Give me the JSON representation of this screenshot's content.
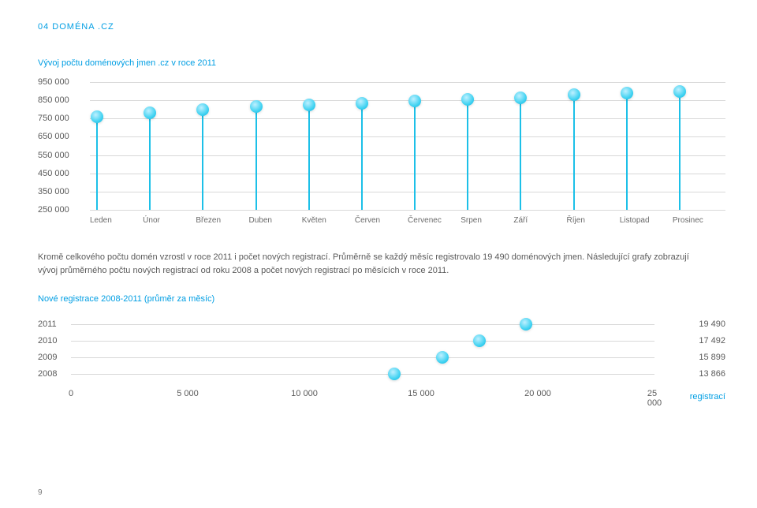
{
  "section_header": "04 DOMÉNA .CZ",
  "chart1": {
    "title": "Vývoj počtu doménových jmen .cz v roce 2011",
    "type": "lollipop",
    "ylim": [
      250000,
      950000
    ],
    "ytick_labels": [
      "950 000",
      "850 000",
      "750 000",
      "650 000",
      "550 000",
      "450 000",
      "350 000",
      "250 000"
    ],
    "ytick_values": [
      950000,
      850000,
      750000,
      650000,
      550000,
      450000,
      350000,
      250000
    ],
    "x_labels": [
      "Leden",
      "Únor",
      "Březen",
      "Duben",
      "Květen",
      "Červen",
      "Červenec",
      "Srpen",
      "Září",
      "Říjen",
      "Listopad",
      "Prosinec"
    ],
    "values": [
      760000,
      780000,
      800000,
      815000,
      825000,
      835000,
      845000,
      855000,
      865000,
      880000,
      890000,
      900000
    ],
    "stem_color": "#1cc0e8",
    "gridline_color": "#d8d8d8",
    "dot_colors": [
      "#42d3f2",
      "#11b2da"
    ]
  },
  "body_paragraph_1": "Kromě celkového počtu domén vzrostl v roce 2011 i počet nových registrací. Průměrně se každý měsíc registrovalo 19 490 doménových jmen. Následující grafy zobrazují vývoj průměrného počtu nových registrací od roku 2008 a počet nových registrací po měsících v roce 2011.",
  "chart2": {
    "title": "Nové registrace 2008-2011 (průměr za měsíc)",
    "type": "horizontal_lollipop",
    "rows": [
      {
        "label": "2011",
        "value": 19490,
        "display": "19 490"
      },
      {
        "label": "2010",
        "value": 17492,
        "display": "17 492"
      },
      {
        "label": "2009",
        "value": 15899,
        "display": "15 899"
      },
      {
        "label": "2008",
        "value": 13866,
        "display": "13 866"
      }
    ],
    "xlim": [
      0,
      25000
    ],
    "xtick_values": [
      0,
      5000,
      10000,
      15000,
      20000,
      25000
    ],
    "xtick_labels": [
      "0",
      "5 000",
      "10 000",
      "15 000",
      "20 000",
      "25 000"
    ],
    "unit": "registrací",
    "gridline_color": "#d8d8d8"
  },
  "page_number": "9"
}
